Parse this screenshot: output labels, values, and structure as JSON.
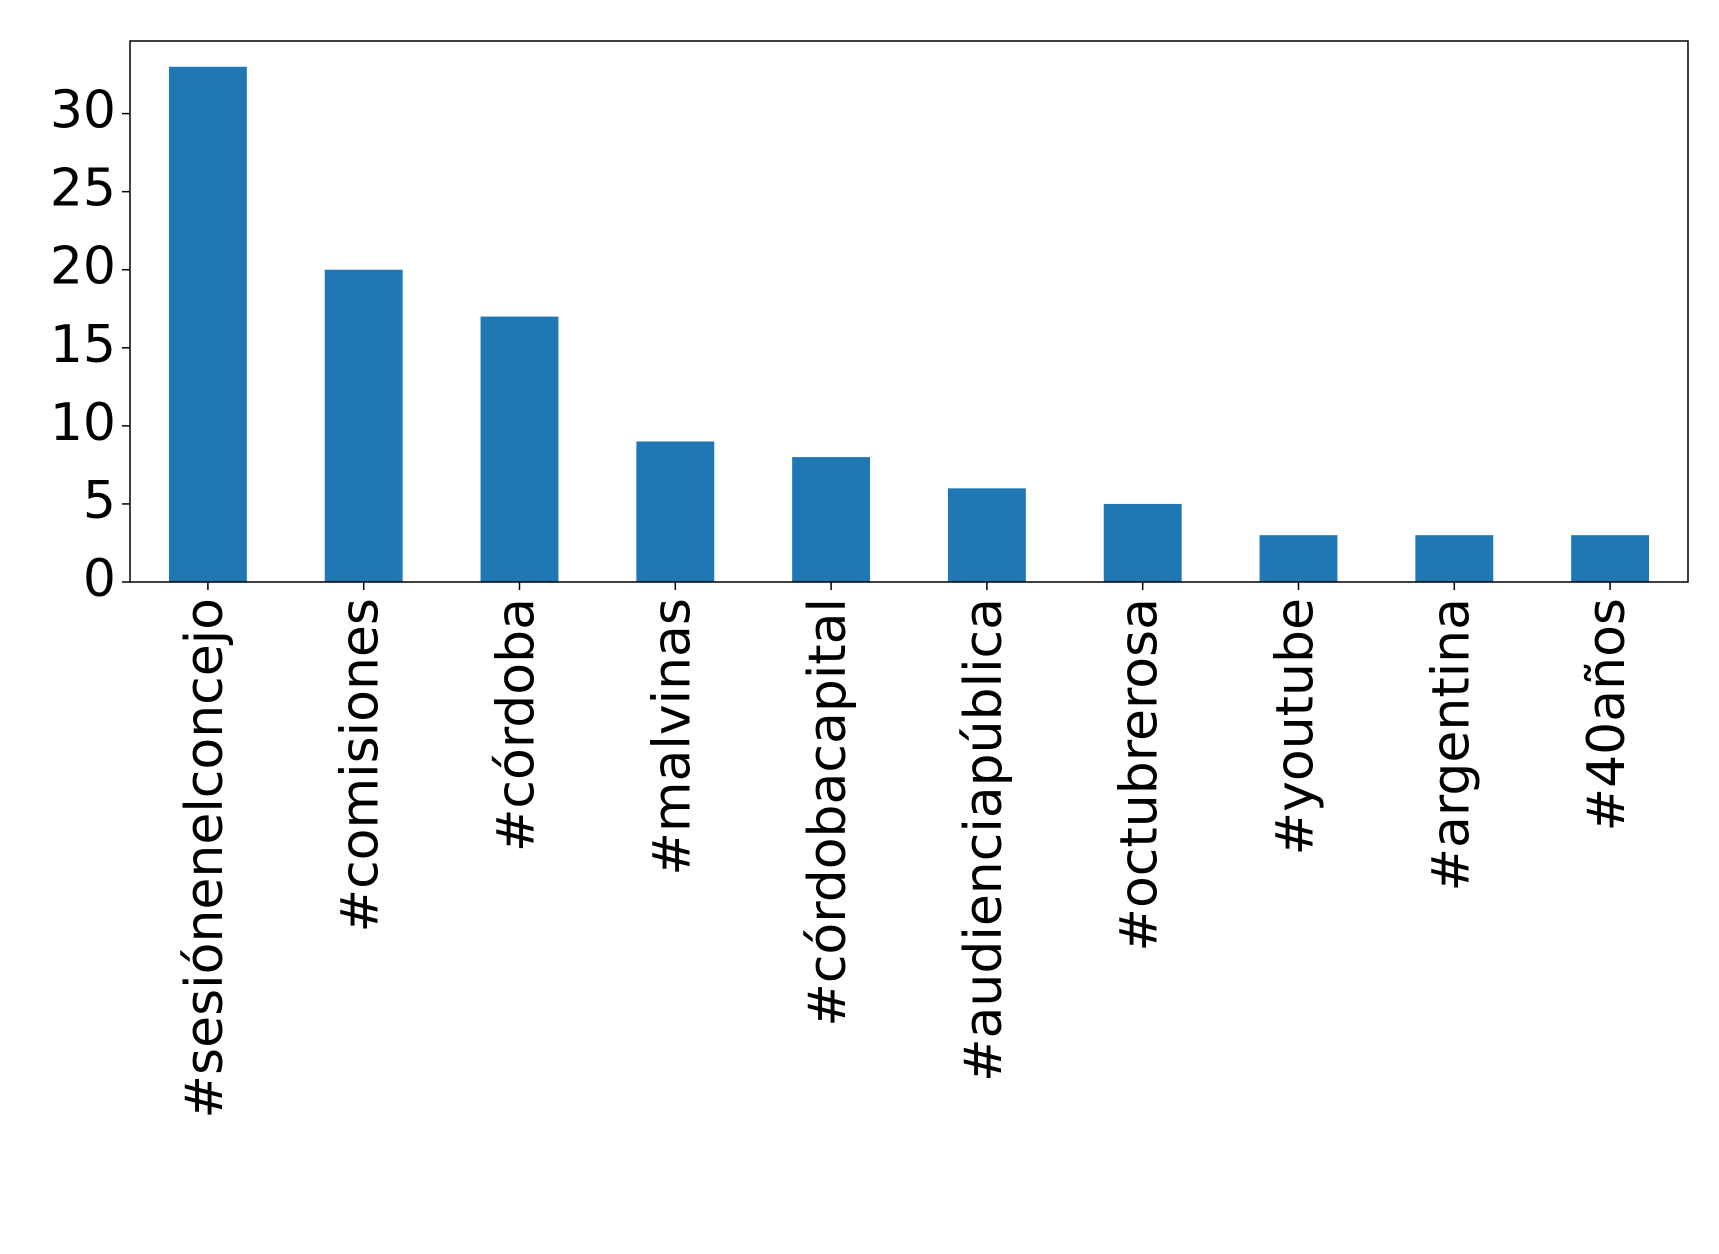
{
  "chart_data": {
    "type": "bar",
    "categories": [
      "#sesiónenelconcejo",
      "#comisiones",
      "#córdoba",
      "#malvinas",
      "#córdobacapital",
      "#audienciapública",
      "#octubrerosa",
      "#youtube",
      "#argentina",
      "#40años"
    ],
    "values": [
      33,
      20,
      17,
      9,
      8,
      6,
      5,
      3,
      3,
      3
    ],
    "color": "#1f77b4",
    "ylim": [
      0,
      34.65
    ],
    "yticks": [
      0,
      5,
      10,
      15,
      20,
      25,
      30
    ]
  }
}
